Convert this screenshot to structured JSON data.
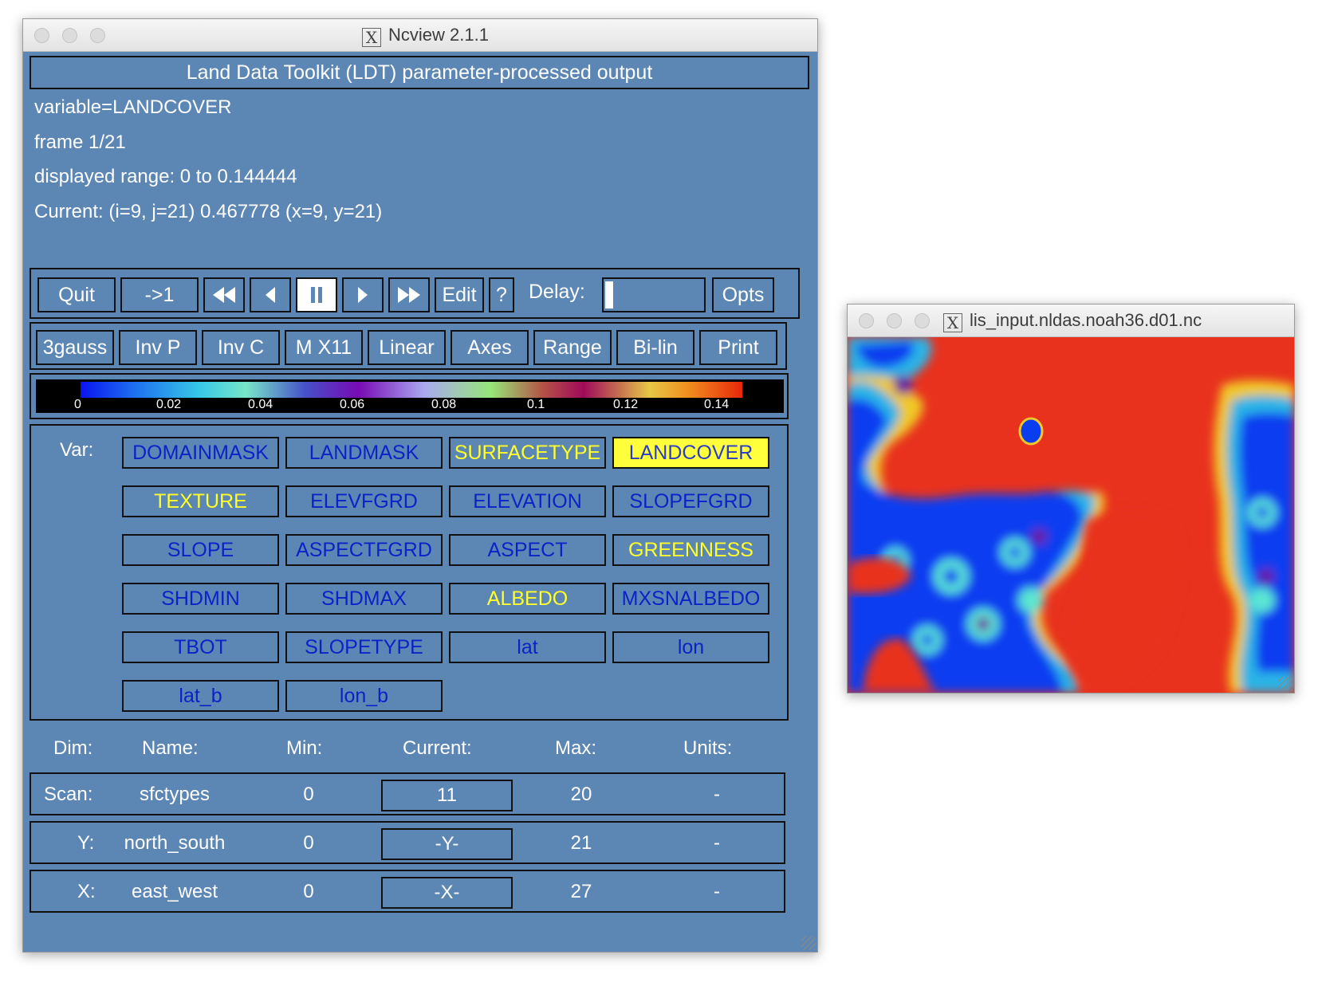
{
  "main_window": {
    "title": "Ncview 2.1.1",
    "header": "Land Data Toolkit (LDT) parameter-processed output",
    "info": [
      "variable=LANDCOVER",
      "frame 1/21",
      "displayed range: 0 to 0.144444",
      "Current: (i=9, j=21) 0.467778 (x=9, y=21)"
    ],
    "transport": {
      "quit": "Quit",
      "to_first": "->1",
      "edit": "Edit",
      "help": "?",
      "delay_label": "Delay:",
      "opts": "Opts"
    },
    "options": [
      "3gauss",
      "Inv P",
      "Inv C",
      "M X11",
      "Linear",
      "Axes",
      "Range",
      "Bi-lin",
      "Print"
    ],
    "colorbar": {
      "ticks": [
        "0",
        "0.02",
        "0.04",
        "0.06",
        "0.08",
        "0.1",
        "0.12",
        "0.14"
      ]
    },
    "var_label": "Var:",
    "variables": [
      {
        "name": "DOMAINMASK",
        "style": "blue"
      },
      {
        "name": "LANDMASK",
        "style": "blue"
      },
      {
        "name": "SURFACETYPE",
        "style": "yellow"
      },
      {
        "name": "LANDCOVER",
        "style": "selected"
      },
      {
        "name": "TEXTURE",
        "style": "yellow"
      },
      {
        "name": "ELEVFGRD",
        "style": "blue"
      },
      {
        "name": "ELEVATION",
        "style": "blue"
      },
      {
        "name": "SLOPEFGRD",
        "style": "blue"
      },
      {
        "name": "SLOPE",
        "style": "blue"
      },
      {
        "name": "ASPECTFGRD",
        "style": "blue"
      },
      {
        "name": "ASPECT",
        "style": "blue"
      },
      {
        "name": "GREENNESS",
        "style": "yellow"
      },
      {
        "name": "SHDMIN",
        "style": "blue"
      },
      {
        "name": "SHDMAX",
        "style": "blue"
      },
      {
        "name": "ALBEDO",
        "style": "yellow"
      },
      {
        "name": "MXSNALBEDO",
        "style": "blue"
      },
      {
        "name": "TBOT",
        "style": "blue"
      },
      {
        "name": "SLOPETYPE",
        "style": "blue"
      },
      {
        "name": "lat",
        "style": "blue"
      },
      {
        "name": "lon",
        "style": "blue"
      },
      {
        "name": "lat_b",
        "style": "blue"
      },
      {
        "name": "lon_b",
        "style": "blue"
      }
    ],
    "dim_headers": {
      "dim": "Dim:",
      "name": "Name:",
      "min": "Min:",
      "current": "Current:",
      "max": "Max:",
      "units": "Units:"
    },
    "dims": [
      {
        "dim": "Scan:",
        "name": "sfctypes",
        "min": "0",
        "current": "11",
        "max": "20",
        "units": "-"
      },
      {
        "dim": "Y:",
        "name": "north_south",
        "min": "0",
        "current": "-Y-",
        "max": "21",
        "units": "-"
      },
      {
        "dim": "X:",
        "name": "east_west",
        "min": "0",
        "current": "-X-",
        "max": "27",
        "units": "-"
      }
    ]
  },
  "image_window": {
    "title": "lis_input.nldas.noah36.d01.nc"
  },
  "colors": {
    "panel": "#5c87b5",
    "var_blue_text": "#0a23c8",
    "var_yellow_text": "#ffff2a",
    "selected_bg": "#ffff3c",
    "map_high": "#e8321e",
    "map_low": "#0a3cf0"
  }
}
